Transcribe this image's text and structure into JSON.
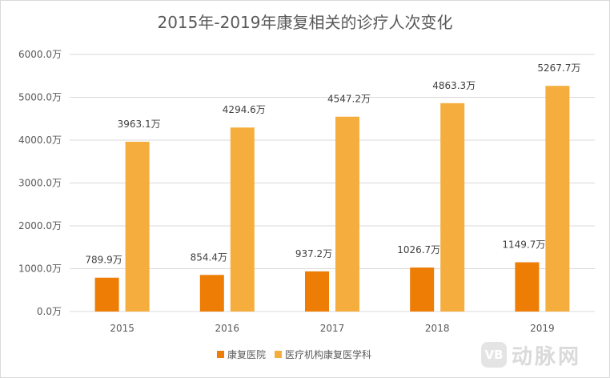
{
  "chart_data": {
    "type": "bar",
    "title": "2015年-2019年康复相关的诊疗人次变化",
    "categories": [
      "2015",
      "2016",
      "2017",
      "2018",
      "2019"
    ],
    "series": [
      {
        "name": "康复医院",
        "color": "#ed7d04",
        "values": [
          789.9,
          854.4,
          937.2,
          1026.7,
          1149.7
        ],
        "labels": [
          "789.9万",
          "854.4万",
          "937.2万",
          "1026.7万",
          "1149.7万"
        ]
      },
      {
        "name": "医疗机构康复医学科",
        "color": "#f5ae3e",
        "values": [
          3963.1,
          4294.6,
          4547.2,
          4863.3,
          5267.7
        ],
        "labels": [
          "3963.1万",
          "4294.6万",
          "4547.2万",
          "4863.3万",
          "5267.7万"
        ]
      }
    ],
    "ylim": [
      0,
      6000
    ],
    "yticks": [
      0,
      1000,
      2000,
      3000,
      4000,
      5000,
      6000
    ],
    "ytick_labels": [
      "0.0万",
      "1000.0万",
      "2000.0万",
      "3000.0万",
      "4000.0万",
      "5000.0万",
      "6000.0万"
    ],
    "grid": true,
    "legend_position": "bottom"
  },
  "watermark": {
    "logo_text": "VB",
    "text": "动脉网"
  }
}
